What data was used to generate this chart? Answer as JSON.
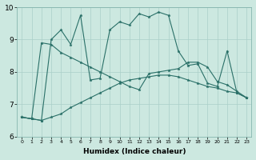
{
  "title": "",
  "xlabel": "Humidex (Indice chaleur)",
  "ylabel": "",
  "xlim": [
    -0.5,
    23.5
  ],
  "ylim": [
    6,
    10
  ],
  "background_color": "#cce8e0",
  "grid_color": "#aacfc8",
  "line_color": "#2a7068",
  "x_ticks": [
    0,
    1,
    2,
    3,
    4,
    5,
    6,
    7,
    8,
    9,
    10,
    11,
    12,
    13,
    14,
    15,
    16,
    17,
    18,
    19,
    20,
    21,
    22,
    23
  ],
  "y_ticks": [
    6,
    7,
    8,
    9,
    10
  ],
  "series": [
    {
      "x": [
        0,
        1,
        2,
        3,
        4,
        5,
        6,
        7,
        8,
        9,
        10,
        11,
        12,
        13,
        14,
        15,
        16,
        17,
        18,
        19,
        20,
        21,
        22,
        23
      ],
      "y": [
        6.6,
        6.55,
        6.5,
        9.0,
        9.3,
        8.85,
        9.75,
        7.75,
        7.8,
        9.3,
        9.55,
        9.45,
        9.8,
        9.7,
        9.85,
        9.75,
        8.65,
        8.2,
        8.25,
        7.65,
        7.55,
        8.65,
        7.35,
        7.2
      ]
    },
    {
      "x": [
        0,
        1,
        2,
        3,
        4,
        5,
        6,
        7,
        8,
        9,
        10,
        11,
        12,
        13,
        14,
        15,
        16,
        17,
        18,
        19,
        20,
        21,
        22,
        23
      ],
      "y": [
        6.6,
        6.55,
        8.9,
        8.85,
        8.6,
        8.45,
        8.3,
        8.15,
        8.0,
        7.85,
        7.7,
        7.55,
        7.45,
        7.95,
        8.0,
        8.05,
        8.1,
        8.3,
        8.3,
        8.15,
        7.7,
        7.6,
        7.4,
        7.2
      ]
    },
    {
      "x": [
        0,
        1,
        2,
        3,
        4,
        5,
        6,
        7,
        8,
        9,
        10,
        11,
        12,
        13,
        14,
        15,
        16,
        17,
        18,
        19,
        20,
        21,
        22,
        23
      ],
      "y": [
        6.6,
        6.55,
        6.5,
        6.6,
        6.7,
        6.9,
        7.05,
        7.2,
        7.35,
        7.5,
        7.65,
        7.75,
        7.8,
        7.85,
        7.9,
        7.9,
        7.85,
        7.75,
        7.65,
        7.55,
        7.5,
        7.4,
        7.35,
        7.2
      ]
    }
  ]
}
